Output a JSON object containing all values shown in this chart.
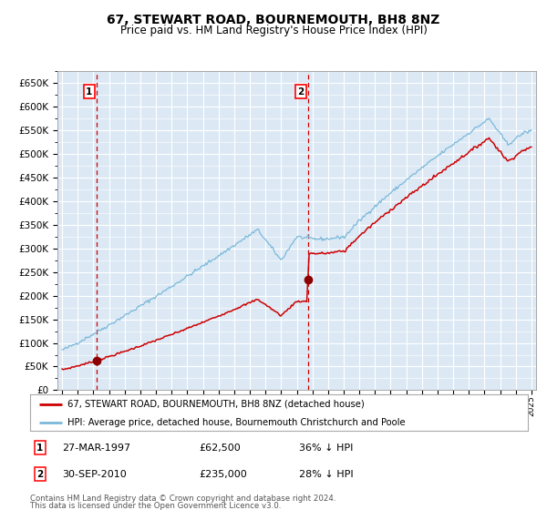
{
  "title": "67, STEWART ROAD, BOURNEMOUTH, BH8 8NZ",
  "subtitle": "Price paid vs. HM Land Registry's House Price Index (HPI)",
  "title_fontsize": 10,
  "subtitle_fontsize": 8.5,
  "bg_color": "#dce9f5",
  "grid_color": "#ffffff",
  "hpi_color": "#7ab8d9",
  "price_color": "#cc0000",
  "marker_color": "#8b0000",
  "dashed_color": "#cc0000",
  "ylim": [
    0,
    675000
  ],
  "yticks": [
    0,
    50000,
    100000,
    150000,
    200000,
    250000,
    300000,
    350000,
    400000,
    450000,
    500000,
    550000,
    600000,
    650000
  ],
  "xlim_start": 1994.7,
  "xlim_end": 2025.3,
  "sale1_year": 1997.23,
  "sale1_price": 62500,
  "sale2_year": 2010.75,
  "sale2_price": 235000,
  "sale1_date": "27-MAR-1997",
  "sale1_pct": "36% ↓ HPI",
  "sale2_date": "30-SEP-2010",
  "sale2_pct": "28% ↓ HPI",
  "legend_line1": "67, STEWART ROAD, BOURNEMOUTH, BH8 8NZ (detached house)",
  "legend_line2": "HPI: Average price, detached house, Bournemouth Christchurch and Poole",
  "footer1": "Contains HM Land Registry data © Crown copyright and database right 2024.",
  "footer2": "This data is licensed under the Open Government Licence v3.0."
}
